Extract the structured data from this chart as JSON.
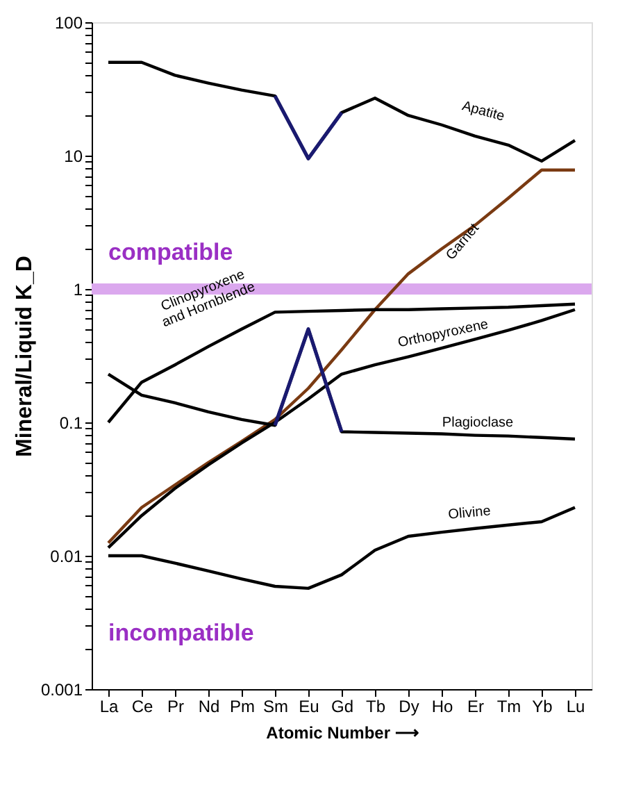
{
  "chart_data": {
    "type": "line",
    "xlabel": "Atomic Number ⟶",
    "ylabel": "Mineral/Liquid K_D",
    "categories": [
      "La",
      "Ce",
      "Pr",
      "Nd",
      "Pm",
      "Sm",
      "Eu",
      "Gd",
      "Tb",
      "Dy",
      "Ho",
      "Er",
      "Tm",
      "Yb",
      "Lu"
    ],
    "series": [
      {
        "name": "Apatite",
        "color": "#000000",
        "values": [
          50,
          50,
          40,
          35,
          31,
          28,
          9.5,
          21,
          27,
          20,
          17,
          14,
          12,
          9.1,
          13
        ]
      },
      {
        "name": "Garnet",
        "color": "#7a3a12",
        "values": [
          0.0125,
          0.023,
          0.034,
          0.05,
          0.072,
          0.105,
          0.18,
          0.35,
          0.7,
          1.3,
          2.0,
          3.0,
          4.8,
          7.8,
          7.8
        ]
      },
      {
        "name": "Clinopyroxene\nand Hornblende",
        "color": "#000000",
        "values": [
          0.1,
          0.2,
          0.27,
          0.37,
          0.5,
          0.67,
          0.68,
          0.69,
          0.7,
          0.7,
          0.71,
          0.72,
          0.73,
          0.75,
          0.77
        ]
      },
      {
        "name": "Orthopyroxene",
        "color": "#000000",
        "values": [
          0.0115,
          0.02,
          0.032,
          0.048,
          0.07,
          0.1,
          0.15,
          0.23,
          0.27,
          0.31,
          0.36,
          0.42,
          0.49,
          0.58,
          0.7
        ]
      },
      {
        "name": "Plagioclase",
        "color": "#000000",
        "values": [
          0.23,
          0.16,
          0.14,
          0.12,
          0.105,
          0.095,
          0.5,
          0.085,
          0.084,
          0.083,
          0.082,
          0.08,
          0.079,
          0.077,
          0.075
        ]
      },
      {
        "name": "Olivine",
        "color": "#000000",
        "values": [
          0.01,
          0.01,
          0.0088,
          0.0077,
          0.0067,
          0.0059,
          0.0057,
          0.0072,
          0.011,
          0.014,
          0.015,
          0.016,
          0.017,
          0.018,
          0.023
        ]
      },
      {
        "color": "#1a1a70",
        "values": [
          null,
          null,
          null,
          null,
          null,
          28,
          9.5,
          21,
          null,
          null,
          null,
          null,
          null,
          null,
          null
        ]
      },
      {
        "color": "#1a1a70",
        "values": [
          null,
          null,
          null,
          null,
          null,
          0.095,
          0.5,
          0.085,
          null,
          null,
          null,
          null,
          null,
          null,
          null
        ]
      }
    ],
    "log": true,
    "ylim": [
      0.001,
      100
    ],
    "yticks": [
      0.001,
      {
        "value": 0.002,
        "label": null
      },
      {
        "value": 0.003,
        "label": null
      },
      {
        "value": 0.004,
        "label": null
      },
      {
        "value": 0.005,
        "label": null
      },
      {
        "value": 0.006,
        "label": null
      },
      {
        "value": 0.007,
        "label": null
      },
      {
        "value": 0.008,
        "label": null
      },
      {
        "value": 0.009,
        "label": null
      },
      0.01,
      {
        "value": 0.02,
        "label": null
      },
      {
        "value": 0.03,
        "label": null
      },
      {
        "value": 0.04,
        "label": null
      },
      {
        "value": 0.05,
        "label": null
      },
      {
        "value": 0.06,
        "label": null
      },
      {
        "value": 0.07,
        "label": null
      },
      {
        "value": 0.08,
        "label": null
      },
      {
        "value": 0.09,
        "label": null
      },
      0.1,
      {
        "value": 0.2,
        "label": null
      },
      {
        "value": 0.3,
        "label": null
      },
      {
        "value": 0.4,
        "label": null
      },
      {
        "value": 0.5,
        "label": null
      },
      {
        "value": 0.6,
        "label": null
      },
      {
        "value": 0.7,
        "label": null
      },
      {
        "value": 0.8,
        "label": null
      },
      {
        "value": 0.9,
        "label": null
      },
      1,
      {
        "value": 2,
        "label": null
      },
      {
        "value": 3,
        "label": null
      },
      {
        "value": 4,
        "label": null
      },
      {
        "value": 5,
        "label": null
      },
      {
        "value": 6,
        "label": null
      },
      {
        "value": 7,
        "label": null
      },
      {
        "value": 8,
        "label": null
      },
      {
        "value": 9,
        "label": null
      },
      10,
      {
        "value": 20,
        "label": null
      },
      {
        "value": 30,
        "label": null
      },
      {
        "value": 40,
        "label": null
      },
      {
        "value": 50,
        "label": null
      },
      {
        "value": 60,
        "label": null
      },
      {
        "value": 70,
        "label": null
      },
      {
        "value": 80,
        "label": null
      },
      {
        "value": 90,
        "label": null
      },
      100
    ],
    "grid": false,
    "marker": "none",
    "line_style": "solid",
    "ref_lines": [
      {
        "axis": "y",
        "value": 1,
        "color": "#dba8ee"
      }
    ],
    "annotations": [
      "compatible",
      "incompatible"
    ]
  }
}
